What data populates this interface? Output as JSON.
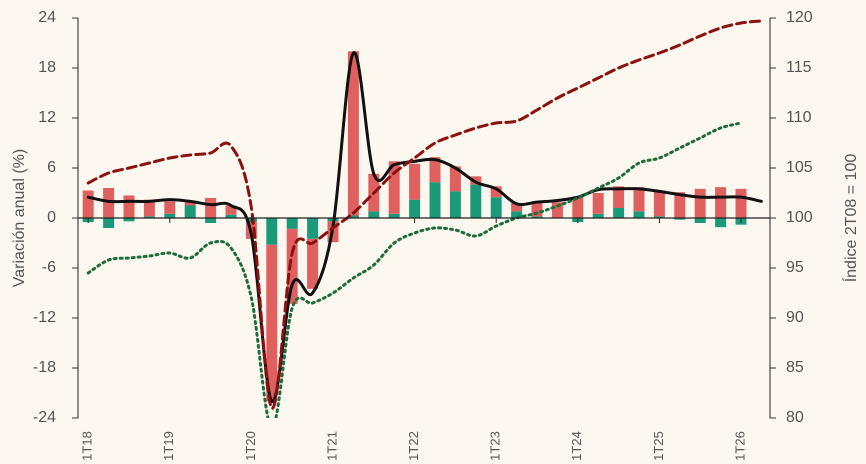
{
  "chart_data": {
    "type": "bar-line",
    "y_label": "Variación anual (%)",
    "y2_label": "Índice 2T08 = 100",
    "categories": [
      "1T18",
      null,
      null,
      null,
      "1T19",
      null,
      null,
      null,
      "1T20",
      null,
      null,
      null,
      "1T21",
      null,
      null,
      null,
      "1T22",
      null,
      null,
      null,
      "1T23",
      null,
      null,
      null,
      "1T24",
      null,
      null,
      null,
      "1T25",
      null,
      null,
      null,
      "1T26",
      null
    ],
    "ylim": [
      -24,
      24
    ],
    "yticks": [
      -24,
      -18,
      -12,
      -6,
      0,
      6,
      12,
      18,
      24
    ],
    "y2lim": [
      80,
      120
    ],
    "y2ticks": [
      80,
      85,
      90,
      95,
      100,
      105,
      110,
      115,
      120
    ],
    "bar_series": [
      {
        "color": "#1a9a78",
        "values": [
          -0.5,
          -1.2,
          -0.4,
          0.2,
          0.5,
          1.5,
          -0.6,
          0.4,
          -0.5,
          -3.2,
          -1.3,
          -2.5,
          -0.4,
          0.3,
          0.8,
          0.5,
          2.2,
          4.3,
          3.2,
          4.0,
          2.5,
          0.8,
          0.2,
          0,
          -0.5,
          0.5,
          1.2,
          0.8,
          0.2,
          -0.2,
          -0.6,
          -1.1,
          -0.8,
          null
        ]
      },
      {
        "color": "#e06060",
        "values": [
          3.3,
          3.6,
          2.7,
          2.0,
          1.5,
          0.6,
          2.4,
          1.1,
          -2.0,
          -18.8,
          -9.0,
          -6.0,
          -2.5,
          19.7,
          4.5,
          6.3,
          4.3,
          3.0,
          3.0,
          1.0,
          1.3,
          1.0,
          1.7,
          1.9,
          2.6,
          2.5,
          2.6,
          2.9,
          3.1,
          3.1,
          3.5,
          3.7,
          3.5,
          null
        ]
      }
    ],
    "line_series": [
      {
        "color": "#111111",
        "style": "solid",
        "axis": "y",
        "values": [
          2.5,
          2.0,
          2.0,
          2.0,
          2.2,
          2.0,
          1.6,
          1.5,
          -2.0,
          -22.0,
          -8.0,
          -9.0,
          -1.0,
          19.8,
          5.3,
          6.4,
          6.8,
          7.0,
          6.0,
          4.3,
          3.5,
          1.7,
          1.9,
          2.1,
          2.5,
          3.4,
          3.5,
          3.5,
          3.2,
          2.8,
          2.5,
          2.5,
          2.5,
          2.0
        ]
      },
      {
        "color": "#8b1010",
        "style": "dashed",
        "axis": "y2",
        "values": [
          103.5,
          104.5,
          105,
          105.5,
          106,
          106.3,
          106.5,
          107.2,
          101,
          81,
          96.5,
          97.5,
          99,
          100.5,
          102.5,
          104.5,
          106,
          107.5,
          108.3,
          109,
          109.5,
          109.7,
          110.8,
          112,
          113,
          114,
          115,
          115.8,
          116.5,
          117.3,
          118.2,
          119,
          119.5,
          119.7
        ]
      },
      {
        "color": "#1e6b3c",
        "style": "dotted",
        "axis": "y2",
        "values": [
          94.5,
          95.8,
          96.0,
          96.2,
          96.5,
          96.0,
          97.5,
          97.0,
          92,
          79,
          91,
          91.5,
          92.5,
          94,
          95.3,
          97.5,
          98.5,
          99,
          98.8,
          98.2,
          99.2,
          100,
          100.5,
          101.2,
          102,
          103,
          104,
          105.5,
          106,
          107,
          108,
          109,
          109.5,
          null
        ]
      }
    ]
  }
}
